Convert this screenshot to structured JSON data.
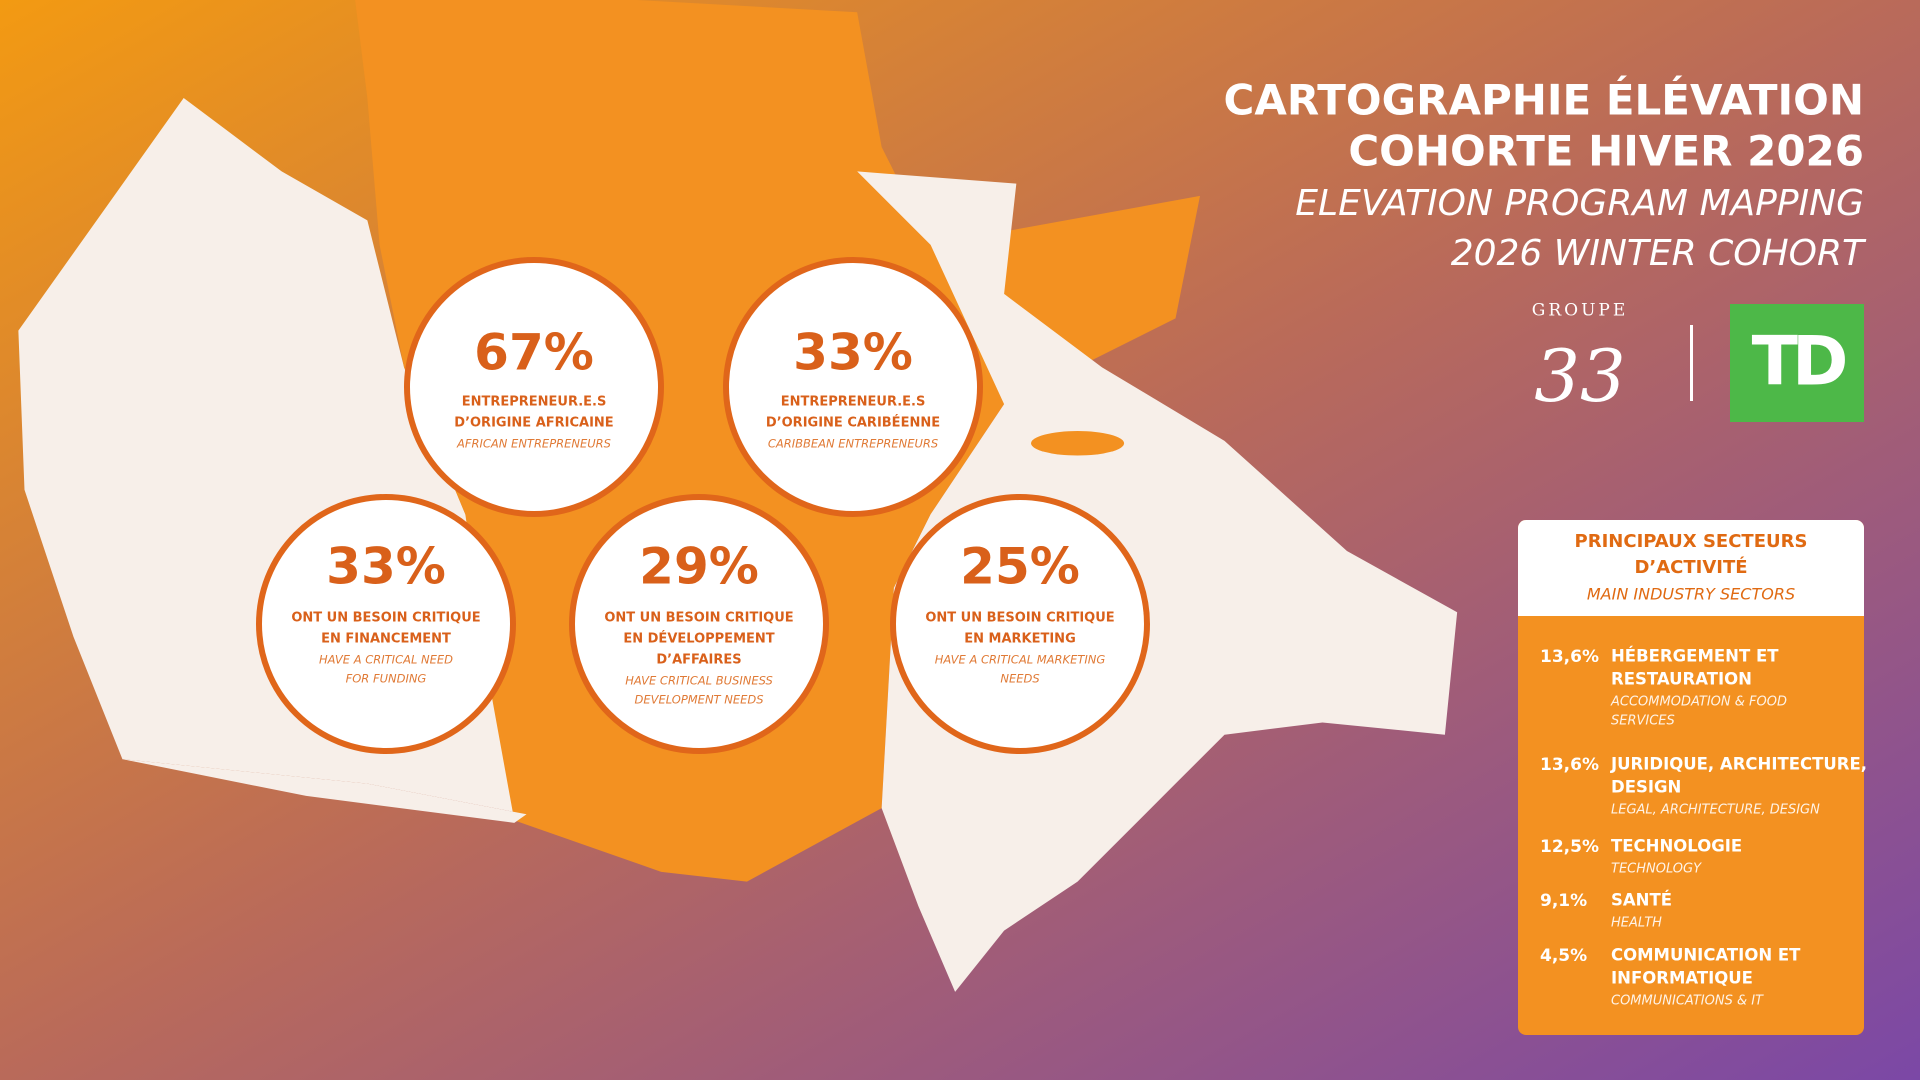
{
  "header": {
    "title_fr_1": "CARTOGRAPHIE ÉLÉVATION",
    "title_fr_2": "COHORTE HIVER 2026",
    "title_en_1": "ELEVATION PROGRAM MAPPING",
    "title_en_2": "2026 WINTER COHORT"
  },
  "logos": {
    "groupe": "GROUPE",
    "number": "33",
    "bank": "TD"
  },
  "stats": [
    {
      "value": "67%",
      "lines_fr": [
        "ENTREPRENEUR.E.S",
        "D’ORIGINE AFRICAINE"
      ],
      "lines_en": [
        "AFRICAN ENTREPRENEURS"
      ]
    },
    {
      "value": "33%",
      "lines_fr": [
        "ENTREPRENEUR.E.S",
        "D’ORIGINE CARIBÉENNE"
      ],
      "lines_en": [
        "CARIBBEAN ENTREPRENEURS"
      ]
    },
    {
      "value": "33%",
      "lines_fr": [
        "ONT UN BESOIN CRITIQUE",
        "EN FINANCEMENT"
      ],
      "lines_en": [
        "HAVE A CRITICAL NEED",
        "FOR FUNDING"
      ]
    },
    {
      "value": "29%",
      "lines_fr": [
        "ONT UN BESOIN CRITIQUE",
        "EN DÉVELOPPEMENT",
        "D’AFFAIRES"
      ],
      "lines_en": [
        "HAVE CRITICAL BUSINESS",
        "DEVELOPMENT NEEDS"
      ]
    },
    {
      "value": "25%",
      "lines_fr": [
        "ONT UN BESOIN CRITIQUE",
        "EN MARKETING"
      ],
      "lines_en": [
        "HAVE A CRITICAL MARKETING",
        "NEEDS"
      ]
    }
  ],
  "sectors": {
    "title_fr": [
      "PRINCIPAUX SECTEURS",
      "D’ACTIVITÉ"
    ],
    "title_en": "MAIN INDUSTRY SECTORS",
    "items": [
      {
        "share": "13,6%",
        "name_fr": [
          "HÉBERGEMENT ET",
          "RESTAURATION"
        ],
        "name_en": [
          "ACCOMMODATION & FOOD",
          "SERVICES"
        ]
      },
      {
        "share": "13,6%",
        "name_fr": [
          "JURIDIQUE, ARCHITECTURE,",
          "DESIGN"
        ],
        "name_en": [
          "LEGAL, ARCHITECTURE, DESIGN"
        ]
      },
      {
        "share": "12,5%",
        "name_fr": [
          "TECHNOLOGIE"
        ],
        "name_en": [
          "TECHNOLOGY"
        ]
      },
      {
        "share": "9,1%",
        "name_fr": [
          "SANTÉ"
        ],
        "name_en": [
          "HEALTH"
        ]
      },
      {
        "share": "4,5%",
        "name_fr": [
          "COMMUNICATION ET",
          "INFORMATIQUE"
        ],
        "name_en": [
          "COMMUNICATIONS & IT"
        ]
      }
    ]
  }
}
